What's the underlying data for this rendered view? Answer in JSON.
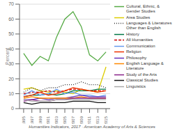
{
  "chart_data": {
    "type": "line",
    "ylabel": "Percent",
    "annotations": [
      "Humanities Indicators, 2017 · American Academy of Arts & Sciences"
    ],
    "x": [
      1995,
      1997,
      1999,
      2001,
      2003,
      2005,
      2007,
      2009,
      2011,
      2013,
      2015
    ],
    "xlim": [
      1994,
      2016
    ],
    "xticks": [
      1995,
      1997,
      1999,
      2001,
      2003,
      2005,
      2007,
      2009,
      2011,
      2013,
      2015
    ],
    "ylim": [
      0,
      70
    ],
    "yticks": [
      0,
      10,
      20,
      30,
      40,
      50,
      60,
      70
    ],
    "grid": "y",
    "legend": "right",
    "series": [
      {
        "name": "Cultural, Ethnic, &\nGender Studies",
        "color": "#55aa44",
        "line_style": "solid",
        "values": [
          37,
          29,
          35,
          32,
          48,
          60,
          65,
          55,
          36,
          32,
          38
        ]
      },
      {
        "name": "Area Studies",
        "color": "#ddcc00",
        "line_style": "solid",
        "values": [
          13,
          14,
          12,
          11,
          12,
          11,
          10,
          13,
          12,
          11,
          28
        ]
      },
      {
        "name": "Languages & Literatures\nOther than English",
        "color": "#333333",
        "line_style": "dotted",
        "values": [
          11,
          14,
          12,
          14,
          14,
          16,
          16,
          18,
          16,
          16,
          14
        ]
      },
      {
        "name": "History",
        "color": "#007744",
        "line_style": "solid",
        "values": [
          8,
          9,
          9,
          10,
          9,
          10,
          12,
          12,
          12,
          13,
          13
        ]
      },
      {
        "name": "All Humanities",
        "color": "#cc0000",
        "line_style": "dashed",
        "values": [
          10,
          11,
          11,
          12,
          11,
          12,
          13,
          13,
          12,
          12,
          12
        ]
      },
      {
        "name": "Communication",
        "color": "#6699ee",
        "line_style": "solid",
        "values": [
          9,
          12,
          9,
          10,
          13,
          10,
          11,
          9,
          9,
          8,
          9
        ]
      },
      {
        "name": "Religion",
        "color": "#ee3300",
        "line_style": "solid",
        "values": [
          8,
          9,
          11,
          9,
          10,
          12,
          14,
          13,
          12,
          11,
          12
        ]
      },
      {
        "name": "Philosophy",
        "color": "#6633bb",
        "line_style": "solid",
        "values": [
          6,
          6,
          7,
          6,
          7,
          7,
          8,
          9,
          8,
          8,
          8
        ]
      },
      {
        "name": "English Language &\nLiterature",
        "color": "#ff8800",
        "line_style": "solid",
        "values": [
          7,
          8,
          7,
          7,
          7,
          7,
          7,
          8,
          7,
          7,
          7
        ]
      },
      {
        "name": "Study of the Arts",
        "color": "#882288",
        "line_style": "solid",
        "values": [
          5,
          6,
          5,
          5,
          6,
          6,
          7,
          7,
          7,
          7,
          7
        ]
      },
      {
        "name": "Classical Studies",
        "color": "#111111",
        "line_style": "solid",
        "values": [
          4,
          3,
          4,
          4,
          4,
          4,
          5,
          5,
          5,
          4,
          4
        ]
      },
      {
        "name": "Linguistics",
        "color": "#aaaaaa",
        "line_style": "solid",
        "values": [
          6,
          5,
          5,
          5,
          6,
          6,
          6,
          6,
          6,
          6,
          6
        ]
      }
    ]
  }
}
